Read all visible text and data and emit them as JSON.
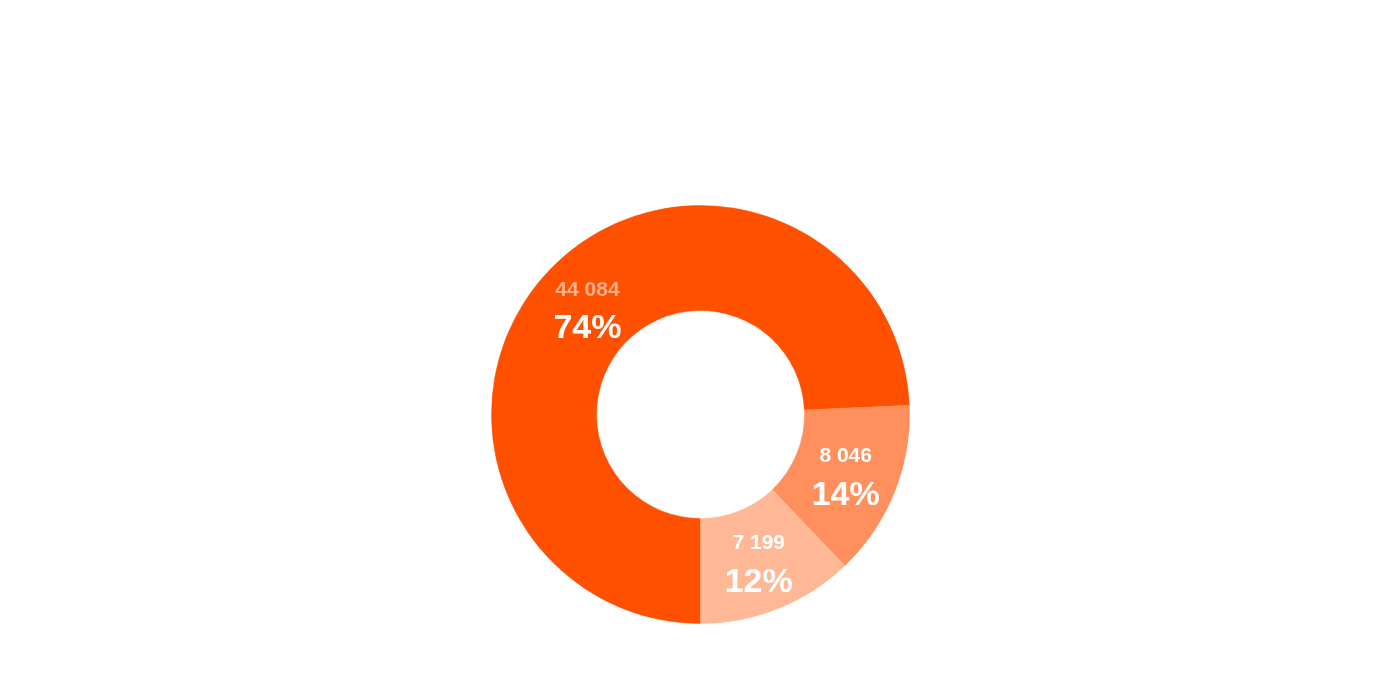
{
  "chart_data": {
    "type": "donut",
    "categories": [
      null,
      null,
      null
    ],
    "values": [
      44084,
      8046,
      7199
    ],
    "colors": [
      "#ff5000",
      "#ff8f5c",
      "#ffb896"
    ],
    "value_labels": [
      "44 084",
      "8 046",
      "7 199"
    ],
    "annotations": [
      "74%",
      "14%",
      "12%"
    ]
  }
}
